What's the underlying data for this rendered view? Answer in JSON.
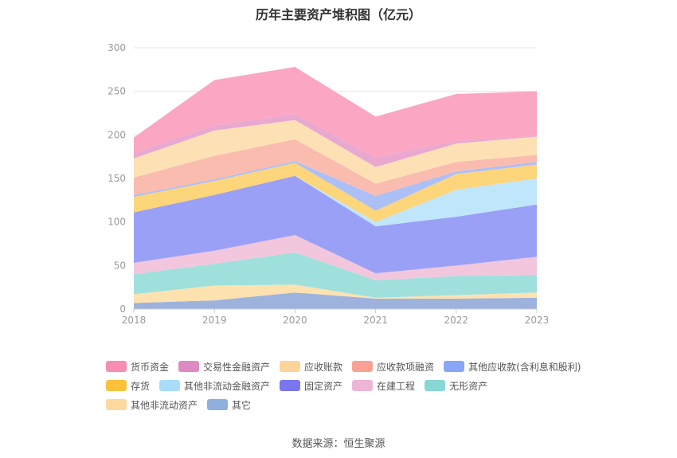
{
  "title": "历年主要资产堆积图（亿元）",
  "source": "数据来源：恒生聚源",
  "chart_data": {
    "type": "area",
    "stacked": true,
    "title": "历年主要资产堆积图（亿元）",
    "xlabel": "",
    "ylabel": "",
    "ylim": [
      0,
      300
    ],
    "yticks": [
      0,
      50,
      100,
      150,
      200,
      250,
      300
    ],
    "grid": true,
    "legend_position": "bottom",
    "categories": [
      "2018",
      "2019",
      "2020",
      "2021",
      "2022",
      "2023"
    ],
    "series": [
      {
        "name": "其它",
        "color": "#9db3de",
        "values": [
          7,
          10,
          19,
          12,
          12,
          13
        ]
      },
      {
        "name": "其他非流动资产",
        "color": "#fde2b0",
        "values": [
          10,
          17,
          9,
          1,
          4,
          6
        ]
      },
      {
        "name": "无形资产",
        "color": "#9fe0dd",
        "values": [
          23,
          25,
          37,
          20,
          22,
          20
        ]
      },
      {
        "name": "在建工程",
        "color": "#f2c7dd",
        "values": [
          13,
          15,
          20,
          8,
          12,
          21
        ]
      },
      {
        "name": "固定资产",
        "color": "#9aa0f5",
        "values": [
          58,
          64,
          68,
          54,
          56,
          60
        ]
      },
      {
        "name": "其他非流动金融资产",
        "color": "#bfe6fb",
        "values": [
          0,
          0,
          0,
          5,
          31,
          30
        ]
      },
      {
        "name": "存货",
        "color": "#fdd57a",
        "values": [
          18,
          16,
          15,
          13,
          18,
          16
        ]
      },
      {
        "name": "其他应收款(含利息和股利)",
        "color": "#adbff7",
        "values": [
          2,
          2,
          2,
          17,
          3,
          3
        ]
      },
      {
        "name": "应收款项融资",
        "color": "#fbbcb0",
        "values": [
          20,
          27,
          25,
          14,
          11,
          8
        ]
      },
      {
        "name": "应收账款",
        "color": "#fde1b4",
        "values": [
          22,
          29,
          22,
          19,
          21,
          21
        ]
      },
      {
        "name": "交易性金融资产",
        "color": "#e9a8cf",
        "values": [
          6,
          6,
          7,
          11,
          3,
          1
        ]
      },
      {
        "name": "货币资金",
        "color": "#fba6c3",
        "values": [
          18,
          52,
          54,
          47,
          54,
          51
        ]
      }
    ],
    "legend_rows": [
      [
        {
          "label": "货币资金",
          "color": "#f78db2"
        },
        {
          "label": "交易性金融资产",
          "color": "#de8ac3"
        },
        {
          "label": "应收账款",
          "color": "#fdd598"
        },
        {
          "label": "应收款项融资",
          "color": "#f9a195"
        },
        {
          "label": "其他应收款(含利息和股利)",
          "color": "#88a6f5"
        }
      ],
      [
        {
          "label": "存货",
          "color": "#fbc13a"
        },
        {
          "label": "其他非流动金融资产",
          "color": "#a7ddfb"
        },
        {
          "label": "固定资产",
          "color": "#7a76ee"
        },
        {
          "label": "在建工程",
          "color": "#eeb5d7"
        },
        {
          "label": "无形资产",
          "color": "#88d7d5"
        }
      ],
      [
        {
          "label": "其他非流动资产",
          "color": "#fdd9a0"
        },
        {
          "label": "其它",
          "color": "#8fb0dc"
        }
      ]
    ]
  }
}
